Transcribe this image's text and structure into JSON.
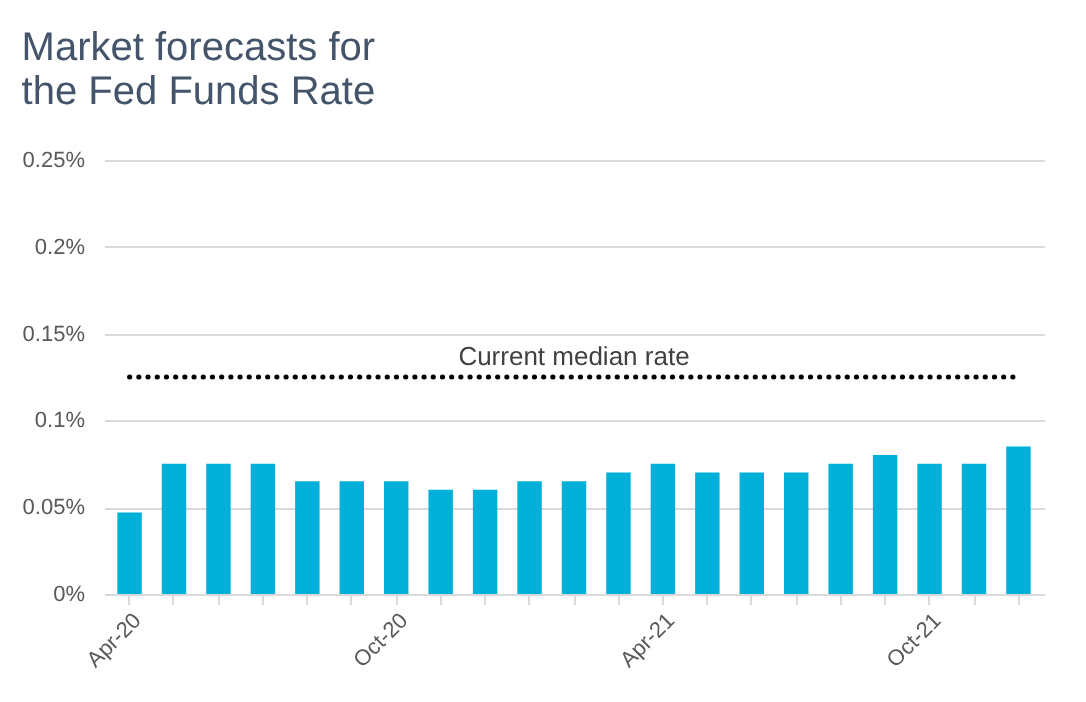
{
  "chart_data": {
    "type": "bar",
    "title": [
      "Market forecasts for",
      "the Fed Funds Rate"
    ],
    "categories": [
      "Apr-20",
      null,
      null,
      null,
      null,
      null,
      "Oct-20",
      null,
      null,
      null,
      null,
      null,
      "Apr-21",
      null,
      null,
      null,
      null,
      null,
      "Oct-21",
      null,
      null
    ],
    "values": [
      0.047,
      0.075,
      0.075,
      0.075,
      0.065,
      0.065,
      0.065,
      0.06,
      0.06,
      0.065,
      0.065,
      0.07,
      0.075,
      0.07,
      0.07,
      0.07,
      0.075,
      0.08,
      0.075,
      0.075,
      0.085
    ],
    "color": "#00b0d8",
    "ylim": [
      0,
      0.25
    ],
    "yticks": [
      {
        "value": 0,
        "label": "0%"
      },
      {
        "value": 0.05,
        "label": "0.05%"
      },
      {
        "value": 0.1,
        "label": "0.1%"
      },
      {
        "value": 0.15,
        "label": "0.15%"
      },
      {
        "value": 0.2,
        "label": "0.2%"
      },
      {
        "value": 0.25,
        "label": "0.25%"
      }
    ],
    "grid": "y",
    "ref_lines": [
      {
        "axis": "y",
        "value": 0.125,
        "label": "Current median  rate",
        "color": "#000000",
        "line_style": "dotted"
      }
    ]
  }
}
